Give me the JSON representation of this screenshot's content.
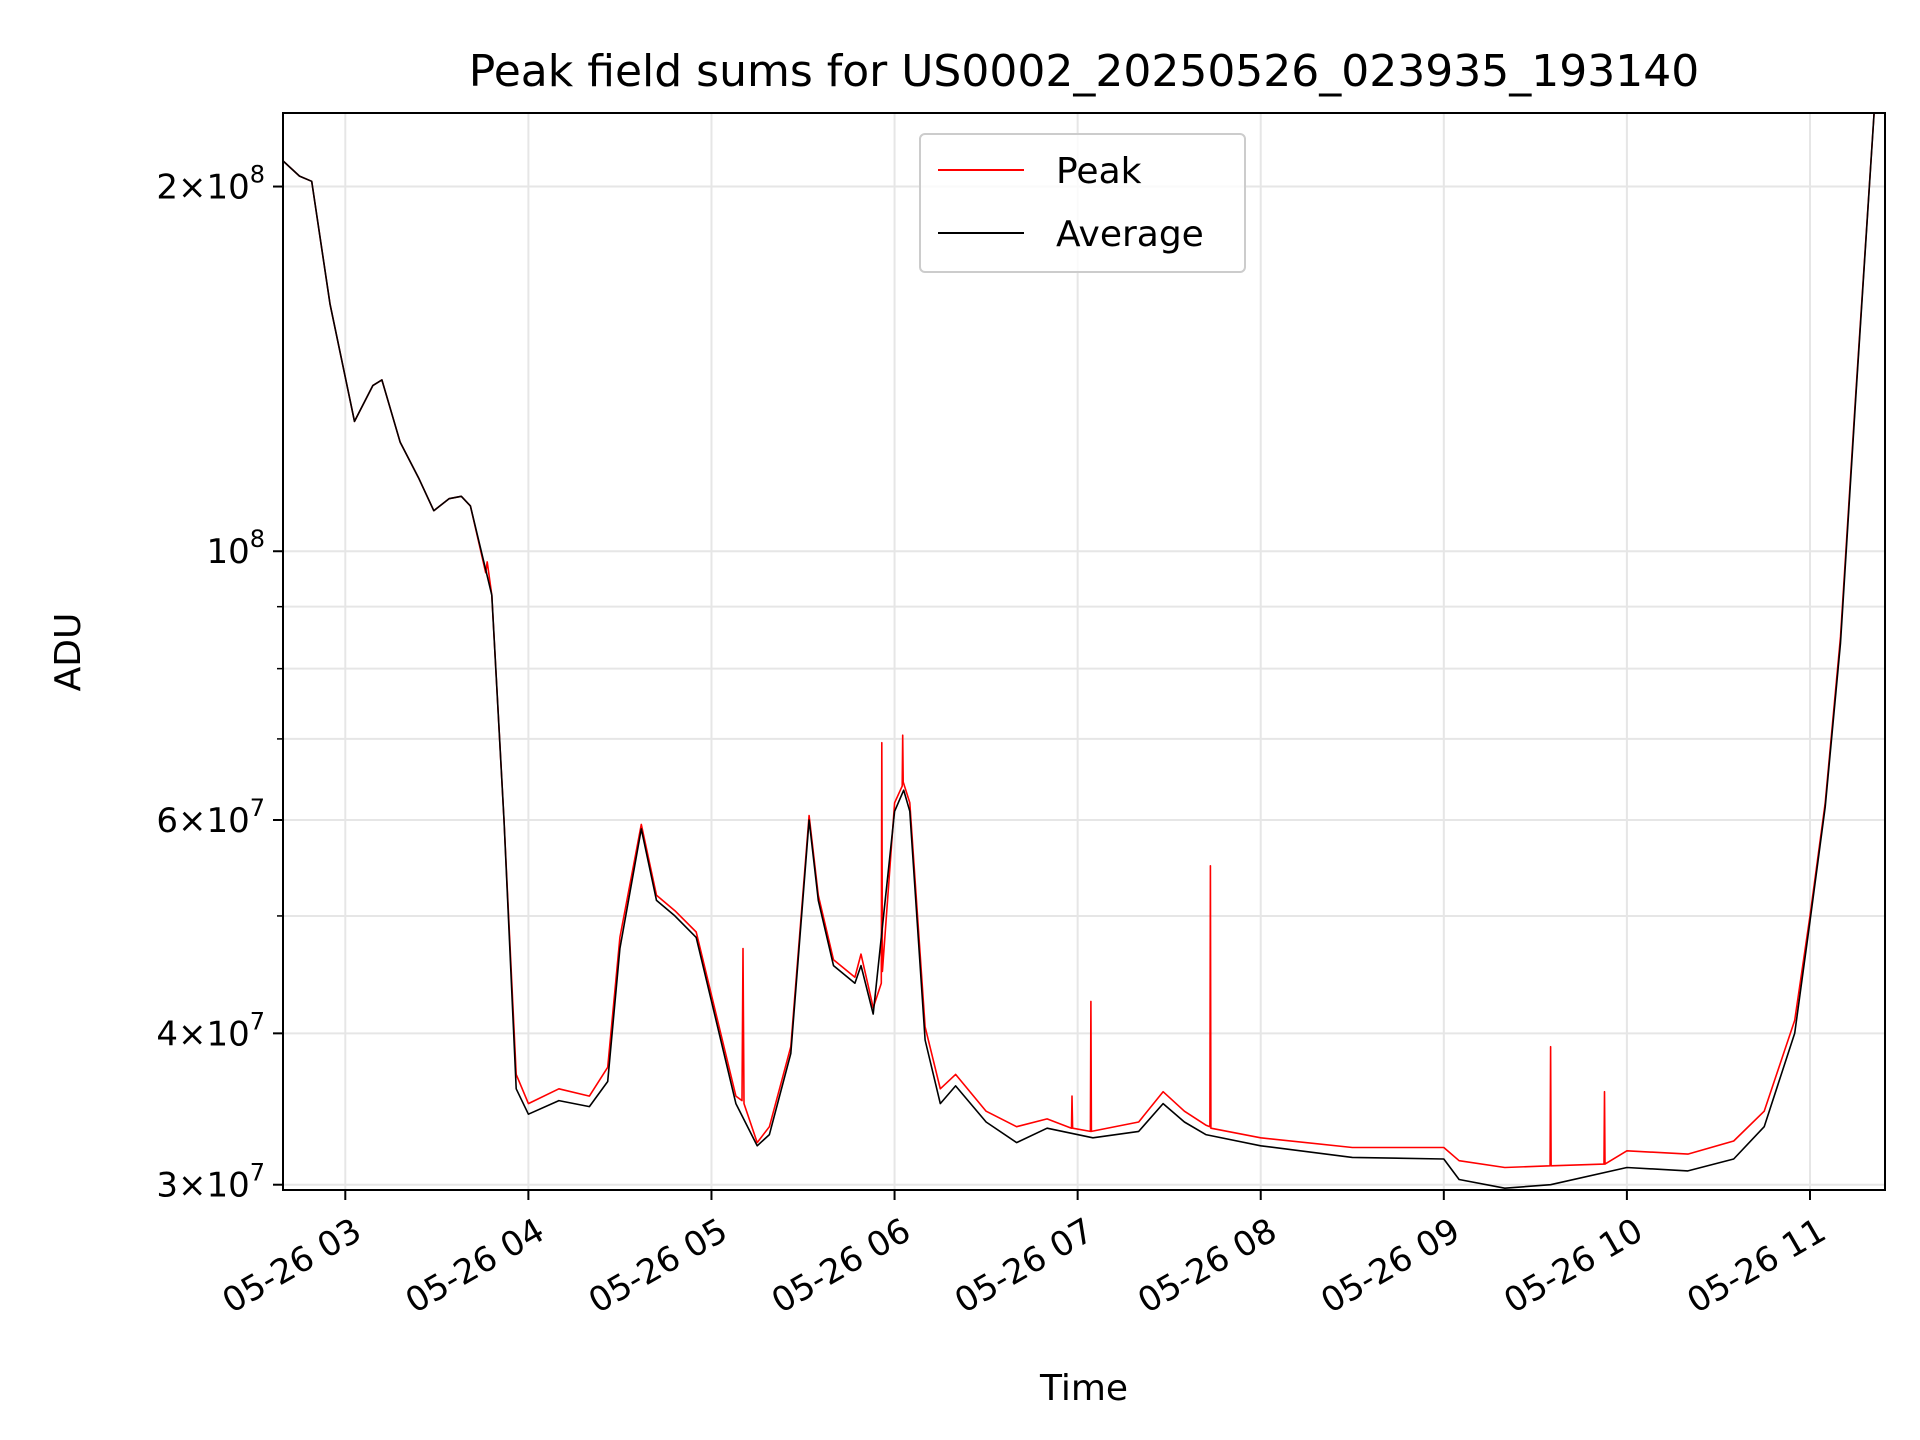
{
  "chart_data": {
    "type": "line",
    "title": "Peak field sums for US0002_20250526_023935_193140",
    "xlabel": "Time",
    "ylabel": "ADU",
    "yscale": "log",
    "ylim": [
      29700000,
      230000000
    ],
    "xlim": [
      "2025-05-26 02:39:35",
      "2025-05-26 11:24:35"
    ],
    "grid": true,
    "legend": {
      "position": "top-center"
    },
    "x_ticks": [
      {
        "t": "2025-05-26 03:00",
        "label": "05-26 03"
      },
      {
        "t": "2025-05-26 04:00",
        "label": "05-26 04"
      },
      {
        "t": "2025-05-26 05:00",
        "label": "05-26 05"
      },
      {
        "t": "2025-05-26 06:00",
        "label": "05-26 06"
      },
      {
        "t": "2025-05-26 07:00",
        "label": "05-26 07"
      },
      {
        "t": "2025-05-26 08:00",
        "label": "05-26 08"
      },
      {
        "t": "2025-05-26 09:00",
        "label": "05-26 09"
      },
      {
        "t": "2025-05-26 10:00",
        "label": "05-26 10"
      },
      {
        "t": "2025-05-26 11:00",
        "label": "05-26 11"
      }
    ],
    "y_ticks": [
      {
        "value": 30000000,
        "mantissa": "3",
        "exponent": "7"
      },
      {
        "value": 40000000,
        "mantissa": "4",
        "exponent": "7"
      },
      {
        "value": 60000000,
        "mantissa": "6",
        "exponent": "7"
      },
      {
        "value": 100000000,
        "mantissa": "",
        "exponent": "8"
      },
      {
        "value": 200000000,
        "mantissa": "2",
        "exponent": "8"
      }
    ],
    "y_minor_ticks": [
      50000000,
      70000000,
      80000000,
      90000000
    ],
    "series": [
      {
        "name": "Peak",
        "color": "#ff0000",
        "points": [
          [
            "2025-05-26 02:39:35",
            210000000
          ],
          [
            "2025-05-26 02:45:00",
            204000000
          ],
          [
            "2025-05-26 02:49:00",
            202000000
          ],
          [
            "2025-05-26 02:55:00",
            160000000
          ],
          [
            "2025-05-26 03:03:00",
            128000000
          ],
          [
            "2025-05-26 03:09:00",
            137000000
          ],
          [
            "2025-05-26 03:12:00",
            138500000
          ],
          [
            "2025-05-26 03:18:00",
            123000000
          ],
          [
            "2025-05-26 03:24:00",
            115000000
          ],
          [
            "2025-05-26 03:29:00",
            108000000
          ],
          [
            "2025-05-26 03:34:00",
            110500000
          ],
          [
            "2025-05-26 03:38:00",
            111000000
          ],
          [
            "2025-05-26 03:41:00",
            109000000
          ],
          [
            "2025-05-26 03:46:00",
            96000000
          ],
          [
            "2025-05-26 03:46:30",
            98000000
          ],
          [
            "2025-05-26 03:48:00",
            92000000
          ],
          [
            "2025-05-26 03:52:00",
            60000000
          ],
          [
            "2025-05-26 03:56:00",
            37000000
          ],
          [
            "2025-05-26 04:00:00",
            35000000
          ],
          [
            "2025-05-26 04:10:00",
            36000000
          ],
          [
            "2025-05-26 04:20:00",
            35500000
          ],
          [
            "2025-05-26 04:26:00",
            37500000
          ],
          [
            "2025-05-26 04:30:00",
            48000000
          ],
          [
            "2025-05-26 04:37:00",
            59500000
          ],
          [
            "2025-05-26 04:42:00",
            52000000
          ],
          [
            "2025-05-26 04:48:00",
            50500000
          ],
          [
            "2025-05-26 04:55:00",
            48500000
          ],
          [
            "2025-05-26 05:02:00",
            41000000
          ],
          [
            "2025-05-26 05:08:00",
            35500000
          ],
          [
            "2025-05-26 05:10:00",
            35200000
          ],
          [
            "2025-05-26 05:10:20",
            47000000
          ],
          [
            "2025-05-26 05:10:40",
            35000000
          ],
          [
            "2025-05-26 05:15:00",
            32500000
          ],
          [
            "2025-05-26 05:19:00",
            33500000
          ],
          [
            "2025-05-26 05:26:00",
            39000000
          ],
          [
            "2025-05-26 05:32:00",
            60500000
          ],
          [
            "2025-05-26 05:35:00",
            52000000
          ],
          [
            "2025-05-26 05:40:00",
            46000000
          ],
          [
            "2025-05-26 05:47:00",
            44500000
          ],
          [
            "2025-05-26 05:49:00",
            46500000
          ],
          [
            "2025-05-26 05:53:00",
            42000000
          ],
          [
            "2025-05-26 05:55:40",
            44000000
          ],
          [
            "2025-05-26 05:55:50",
            69500000
          ],
          [
            "2025-05-26 05:56:00",
            45000000
          ],
          [
            "2025-05-26 06:00:00",
            62000000
          ],
          [
            "2025-05-26 06:02:30",
            64000000
          ],
          [
            "2025-05-26 06:02:40",
            70500000
          ],
          [
            "2025-05-26 06:02:50",
            64500000
          ],
          [
            "2025-05-26 06:05:00",
            62000000
          ],
          [
            "2025-05-26 06:10:00",
            40500000
          ],
          [
            "2025-05-26 06:15:00",
            36000000
          ],
          [
            "2025-05-26 06:20:00",
            37000000
          ],
          [
            "2025-05-26 06:30:00",
            34500000
          ],
          [
            "2025-05-26 06:40:00",
            33500000
          ],
          [
            "2025-05-26 06:50:00",
            34000000
          ],
          [
            "2025-05-26 06:58:00",
            33400000
          ],
          [
            "2025-05-26 06:58:10",
            35500000
          ],
          [
            "2025-05-26 06:58:20",
            33400000
          ],
          [
            "2025-05-26 07:04:10",
            33200000
          ],
          [
            "2025-05-26 07:04:20",
            42500000
          ],
          [
            "2025-05-26 07:04:30",
            33200000
          ],
          [
            "2025-05-26 07:20:00",
            33800000
          ],
          [
            "2025-05-26 07:28:00",
            35800000
          ],
          [
            "2025-05-26 07:35:00",
            34500000
          ],
          [
            "2025-05-26 07:42:00",
            33600000
          ],
          [
            "2025-05-26 07:43:20",
            33500000
          ],
          [
            "2025-05-26 07:43:30",
            55000000
          ],
          [
            "2025-05-26 07:43:40",
            33400000
          ],
          [
            "2025-05-26 08:00:00",
            32800000
          ],
          [
            "2025-05-26 08:30:00",
            32200000
          ],
          [
            "2025-05-26 09:00:00",
            32200000
          ],
          [
            "2025-05-26 09:05:00",
            31400000
          ],
          [
            "2025-05-26 09:20:00",
            31000000
          ],
          [
            "2025-05-26 09:34:50",
            31100000
          ],
          [
            "2025-05-26 09:35:00",
            39000000
          ],
          [
            "2025-05-26 09:35:10",
            31100000
          ],
          [
            "2025-05-26 09:52:30",
            31200000
          ],
          [
            "2025-05-26 09:52:40",
            35800000
          ],
          [
            "2025-05-26 09:52:50",
            31200000
          ],
          [
            "2025-05-26 10:00:00",
            32000000
          ],
          [
            "2025-05-26 10:20:00",
            31800000
          ],
          [
            "2025-05-26 10:35:00",
            32600000
          ],
          [
            "2025-05-26 10:45:00",
            34500000
          ],
          [
            "2025-05-26 10:55:00",
            41000000
          ],
          [
            "2025-05-26 11:00:00",
            50000000
          ],
          [
            "2025-05-26 11:05:00",
            62000000
          ],
          [
            "2025-05-26 11:10:00",
            85000000
          ],
          [
            "2025-05-26 11:15:00",
            135000000
          ],
          [
            "2025-05-26 11:21:00",
            230000000
          ]
        ]
      },
      {
        "name": "Average",
        "color": "#000000",
        "points": [
          [
            "2025-05-26 02:39:35",
            210000000
          ],
          [
            "2025-05-26 02:45:00",
            204000000
          ],
          [
            "2025-05-26 02:49:00",
            202000000
          ],
          [
            "2025-05-26 02:55:00",
            160000000
          ],
          [
            "2025-05-26 03:03:00",
            128000000
          ],
          [
            "2025-05-26 03:09:00",
            137000000
          ],
          [
            "2025-05-26 03:12:00",
            138500000
          ],
          [
            "2025-05-26 03:18:00",
            123000000
          ],
          [
            "2025-05-26 03:24:00",
            115000000
          ],
          [
            "2025-05-26 03:29:00",
            108000000
          ],
          [
            "2025-05-26 03:34:00",
            110500000
          ],
          [
            "2025-05-26 03:38:00",
            111000000
          ],
          [
            "2025-05-26 03:41:00",
            109000000
          ],
          [
            "2025-05-26 03:48:00",
            92000000
          ],
          [
            "2025-05-26 03:52:00",
            60000000
          ],
          [
            "2025-05-26 03:56:00",
            36000000
          ],
          [
            "2025-05-26 04:00:00",
            34300000
          ],
          [
            "2025-05-26 04:10:00",
            35200000
          ],
          [
            "2025-05-26 04:20:00",
            34800000
          ],
          [
            "2025-05-26 04:26:00",
            36500000
          ],
          [
            "2025-05-26 04:30:00",
            47000000
          ],
          [
            "2025-05-26 04:37:00",
            59000000
          ],
          [
            "2025-05-26 04:42:00",
            51500000
          ],
          [
            "2025-05-26 04:48:00",
            50000000
          ],
          [
            "2025-05-26 04:55:00",
            48000000
          ],
          [
            "2025-05-26 05:02:00",
            40500000
          ],
          [
            "2025-05-26 05:08:00",
            35000000
          ],
          [
            "2025-05-26 05:15:00",
            32300000
          ],
          [
            "2025-05-26 05:19:00",
            33000000
          ],
          [
            "2025-05-26 05:26:00",
            38500000
          ],
          [
            "2025-05-26 05:32:00",
            60000000
          ],
          [
            "2025-05-26 05:35:00",
            51500000
          ],
          [
            "2025-05-26 05:40:00",
            45500000
          ],
          [
            "2025-05-26 05:47:00",
            44000000
          ],
          [
            "2025-05-26 05:49:00",
            45500000
          ],
          [
            "2025-05-26 05:53:00",
            41500000
          ],
          [
            "2025-05-26 06:00:00",
            61000000
          ],
          [
            "2025-05-26 06:03:00",
            63500000
          ],
          [
            "2025-05-26 06:05:00",
            61000000
          ],
          [
            "2025-05-26 06:10:00",
            39500000
          ],
          [
            "2025-05-26 06:15:00",
            35000000
          ],
          [
            "2025-05-26 06:20:00",
            36200000
          ],
          [
            "2025-05-26 06:30:00",
            33800000
          ],
          [
            "2025-05-26 06:40:00",
            32500000
          ],
          [
            "2025-05-26 06:50:00",
            33400000
          ],
          [
            "2025-05-26 07:05:00",
            32800000
          ],
          [
            "2025-05-26 07:20:00",
            33200000
          ],
          [
            "2025-05-26 07:28:00",
            35000000
          ],
          [
            "2025-05-26 07:35:00",
            33800000
          ],
          [
            "2025-05-26 07:42:00",
            33000000
          ],
          [
            "2025-05-26 08:00:00",
            32300000
          ],
          [
            "2025-05-26 08:30:00",
            31600000
          ],
          [
            "2025-05-26 09:00:00",
            31500000
          ],
          [
            "2025-05-26 09:05:00",
            30300000
          ],
          [
            "2025-05-26 09:20:00",
            29800000
          ],
          [
            "2025-05-26 09:35:00",
            30000000
          ],
          [
            "2025-05-26 10:00:00",
            31000000
          ],
          [
            "2025-05-26 10:20:00",
            30800000
          ],
          [
            "2025-05-26 10:35:00",
            31500000
          ],
          [
            "2025-05-26 10:45:00",
            33500000
          ],
          [
            "2025-05-26 10:55:00",
            40000000
          ],
          [
            "2025-05-26 11:00:00",
            49500000
          ],
          [
            "2025-05-26 11:05:00",
            61500000
          ],
          [
            "2025-05-26 11:10:00",
            84000000
          ],
          [
            "2025-05-26 11:15:00",
            134000000
          ],
          [
            "2025-05-26 11:21:00",
            230000000
          ]
        ]
      }
    ]
  }
}
